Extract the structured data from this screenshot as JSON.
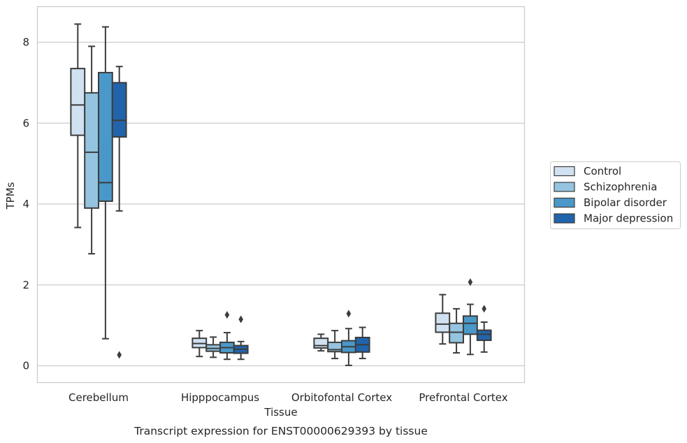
{
  "chart_data": {
    "type": "box",
    "title": "",
    "caption": "Transcript expression for ENST00000629393 by tissue",
    "xlabel": "Tissue",
    "ylabel": "TPMs",
    "ylim": [
      -0.4,
      8.85
    ],
    "yticks": [
      0,
      2,
      4,
      6,
      8
    ],
    "grid": true,
    "legend_position": "right",
    "categories": [
      "Cerebellum",
      "Hipppocampus",
      "Orbitofontal Cortex",
      "Prefrontal Cortex"
    ],
    "series": [
      {
        "name": "Control",
        "color": "#d0e1f2",
        "boxes": [
          {
            "whisker_low": 3.42,
            "q1": 5.7,
            "median": 6.45,
            "q3": 7.35,
            "whisker_high": 8.45,
            "outliers": []
          },
          {
            "whisker_low": 0.23,
            "q1": 0.45,
            "median": 0.55,
            "q3": 0.68,
            "whisker_high": 0.87,
            "outliers": []
          },
          {
            "whisker_low": 0.37,
            "q1": 0.44,
            "median": 0.5,
            "q3": 0.68,
            "whisker_high": 0.78,
            "outliers": []
          },
          {
            "whisker_low": 0.54,
            "q1": 0.83,
            "median": 1.03,
            "q3": 1.3,
            "whisker_high": 1.76,
            "outliers": []
          }
        ]
      },
      {
        "name": "Schizophrenia",
        "color": "#94c4df",
        "boxes": [
          {
            "whisker_low": 2.77,
            "q1": 3.9,
            "median": 5.28,
            "q3": 6.75,
            "whisker_high": 7.9,
            "outliers": []
          },
          {
            "whisker_low": 0.21,
            "q1": 0.36,
            "median": 0.43,
            "q3": 0.52,
            "whisker_high": 0.71,
            "outliers": []
          },
          {
            "whisker_low": 0.18,
            "q1": 0.35,
            "median": 0.4,
            "q3": 0.58,
            "whisker_high": 0.87,
            "outliers": []
          },
          {
            "whisker_low": 0.32,
            "q1": 0.57,
            "median": 0.83,
            "q3": 1.05,
            "whisker_high": 1.41,
            "outliers": []
          }
        ]
      },
      {
        "name": "Bipolar disorder",
        "color": "#4a98c9",
        "boxes": [
          {
            "whisker_low": 0.67,
            "q1": 4.07,
            "median": 4.53,
            "q3": 7.25,
            "whisker_high": 8.38,
            "outliers": []
          },
          {
            "whisker_low": 0.16,
            "q1": 0.32,
            "median": 0.45,
            "q3": 0.58,
            "whisker_high": 0.82,
            "outliers": [
              1.26
            ]
          },
          {
            "whisker_low": 0.01,
            "q1": 0.33,
            "median": 0.47,
            "q3": 0.62,
            "whisker_high": 0.92,
            "outliers": [
              1.29
            ]
          },
          {
            "whisker_low": 0.28,
            "q1": 0.78,
            "median": 1.05,
            "q3": 1.23,
            "whisker_high": 1.52,
            "outliers": [
              2.07
            ]
          }
        ]
      },
      {
        "name": "Major depression",
        "color": "#2164ab",
        "boxes": [
          {
            "whisker_low": 3.83,
            "q1": 5.66,
            "median": 6.07,
            "q3": 7.0,
            "whisker_high": 7.4,
            "outliers": [
              0.27
            ]
          },
          {
            "whisker_low": 0.16,
            "q1": 0.31,
            "median": 0.41,
            "q3": 0.5,
            "whisker_high": 0.6,
            "outliers": [
              1.15
            ]
          },
          {
            "whisker_low": 0.18,
            "q1": 0.34,
            "median": 0.52,
            "q3": 0.7,
            "whisker_high": 0.95,
            "outliers": []
          },
          {
            "whisker_low": 0.34,
            "q1": 0.63,
            "median": 0.78,
            "q3": 0.88,
            "whisker_high": 1.08,
            "outliers": [
              1.41
            ]
          }
        ]
      }
    ]
  }
}
